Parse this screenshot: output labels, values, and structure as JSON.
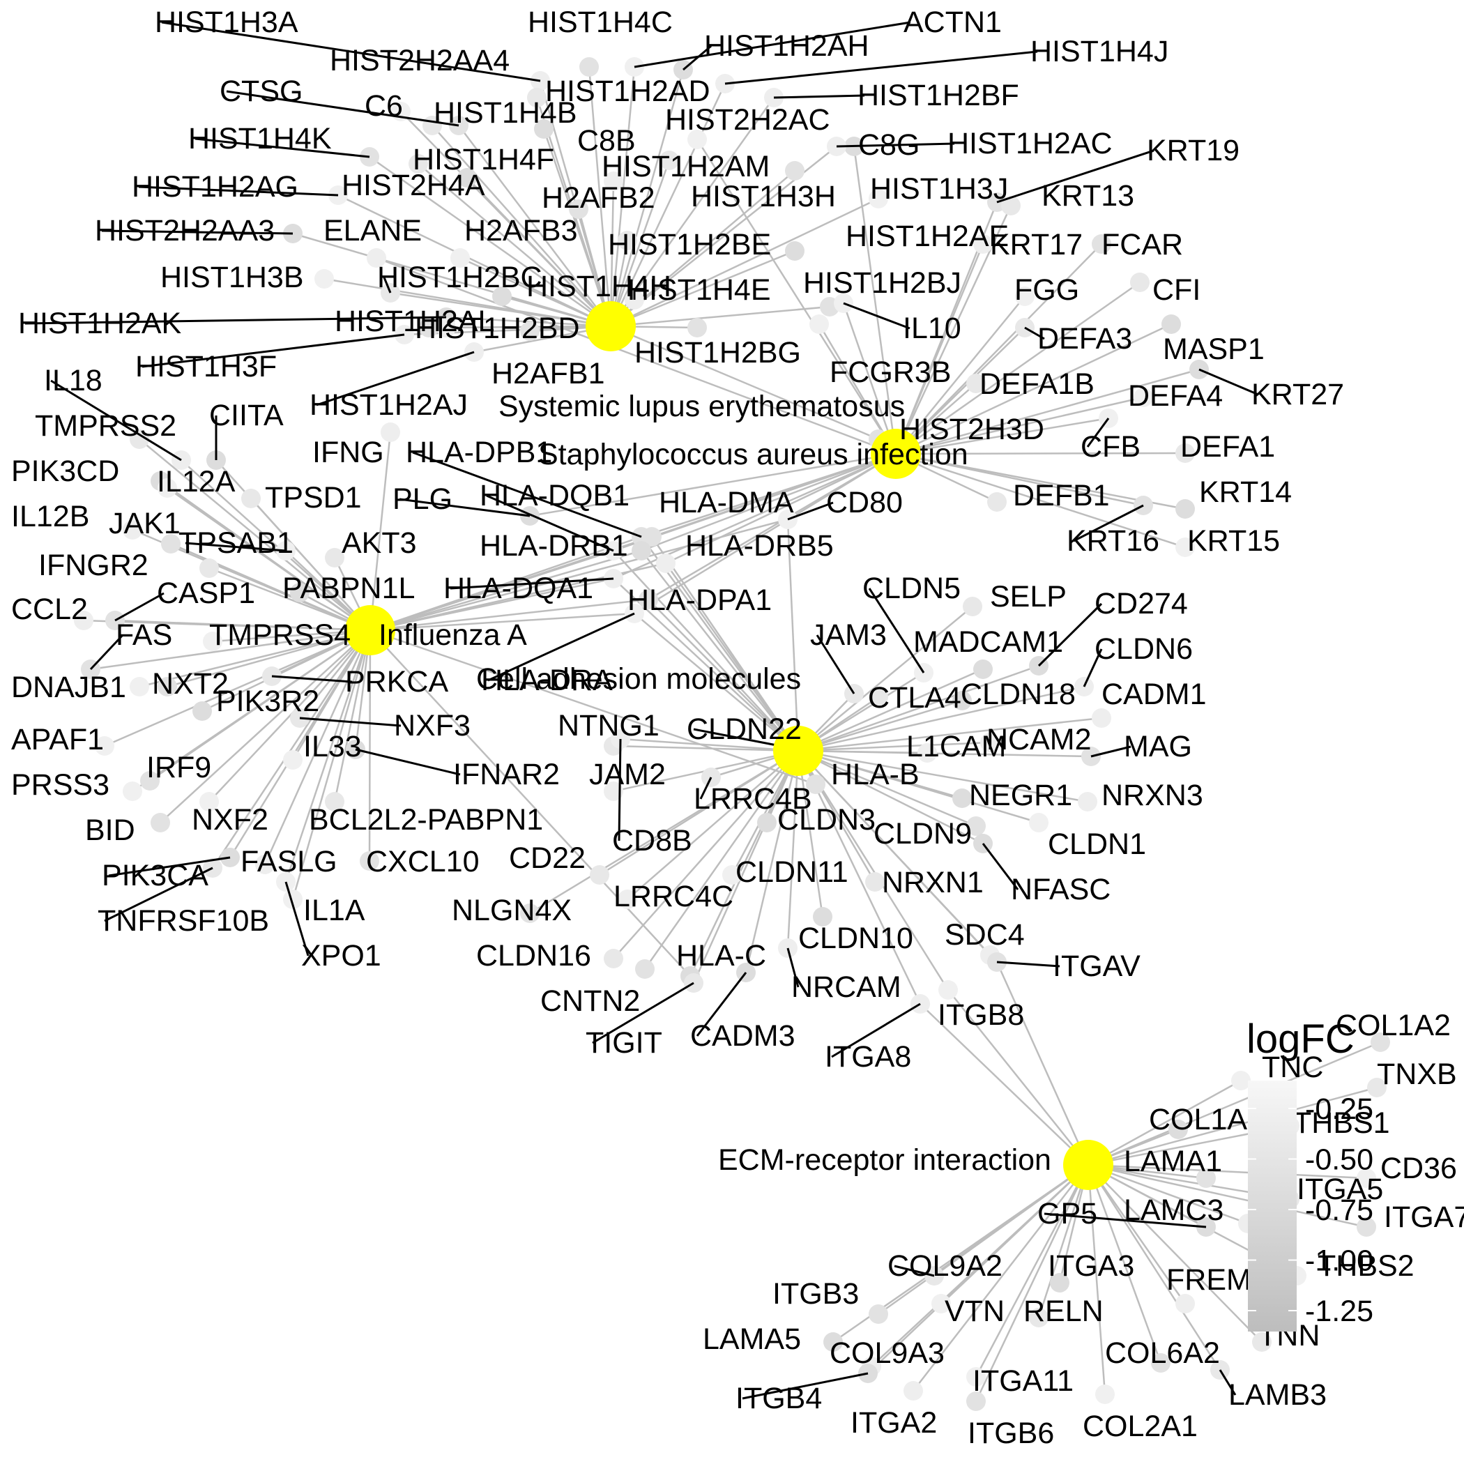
{
  "hubs": [
    {
      "id": "sle",
      "label": "Systemic lupus erythematosus"
    },
    {
      "id": "sa",
      "label": "Staphylococcus aureus infection"
    },
    {
      "id": "flu",
      "label": "Influenza A"
    },
    {
      "id": "cam",
      "label": "Cell adhesion molecules"
    },
    {
      "id": "ecm",
      "label": "ECM-receptor interaction"
    }
  ],
  "genes": [
    "HIST1H3A",
    "HIST1H4C",
    "ACTN1",
    "HIST2H2AA4",
    "HIST1H2AH",
    "HIST1H4J",
    "CTSG",
    "C6",
    "HIST1H4B",
    "HIST1H2AD",
    "HIST1H2BF",
    "HIST1H4K",
    "C8B",
    "HIST2H2AC",
    "C8G",
    "HIST1H2AC",
    "KRT19",
    "HIST1H2AG",
    "HIST2H4A",
    "HIST1H4F",
    "HIST1H2AM",
    "HIST1H3H",
    "HIST1H3J",
    "KRT13",
    "HIST2H2AA3",
    "ELANE",
    "H2AFB2",
    "H2AFB3",
    "HIST1H2BE",
    "HIST1H2AE",
    "KRT17",
    "FCAR",
    "HIST1H3B",
    "HIST1H2BC",
    "HIST1H4H",
    "HIST1H4E",
    "HIST1H2BJ",
    "FGG",
    "CFI",
    "HIST1H2AK",
    "HIST1H2AL",
    "HIST1H2BD",
    "IL10",
    "DEFA3",
    "MASP1",
    "HIST1H3F",
    "HIST1H2BG",
    "FCGR3B",
    "DEFA1B",
    "KRT27",
    "IL18",
    "H2AFB1",
    "DEFA4",
    "TMPRSS2",
    "CIITA",
    "HIST1H2AJ",
    "HIST2H3D",
    "CFB",
    "DEFA1",
    "PIK3CD",
    "IFNG",
    "HLA-DPB1",
    "IL12A",
    "TPSD1",
    "PLG",
    "HLA-DQB1",
    "HLA-DMA",
    "CD80",
    "DEFB1",
    "KRT14",
    "IL12B",
    "JAK1",
    "TPSAB1",
    "AKT3",
    "HLA-DRB1",
    "HLA-DRB5",
    "KRT16",
    "KRT15",
    "IFNGR2",
    "PABPN1L",
    "HLA-DQA1",
    "HLA-DPA1",
    "CLDN5",
    "SELP",
    "CD274",
    "CCL2",
    "CASP1",
    "TMPRSS4",
    "JAM3",
    "MADCAM1",
    "CLDN6",
    "FAS",
    "HLA-DRA",
    "CTLA4",
    "CLDN18",
    "CADM1",
    "DNAJB1",
    "NXT2",
    "PRKCA",
    "PIK3R2",
    "NCAM2",
    "MAG",
    "APAF1",
    "NXF3",
    "CLDN22",
    "L1CAM",
    "IRF9",
    "IL33",
    "NTNG1",
    "IFNAR2",
    "JAM2",
    "HLA-B",
    "PRSS3",
    "LRRC4B",
    "NEGR1",
    "NRXN3",
    "BID",
    "NXF2",
    "BCL2L2-PABPN1",
    "CLDN3",
    "CD8B",
    "CLDN9",
    "CLDN1",
    "CD22",
    "PIK3CA",
    "FASLG",
    "CXCL10",
    "CLDN11",
    "NRXN1",
    "NFASC",
    "LRRC4C",
    "NLGN4X",
    "IL1A",
    "TNFRSF10B",
    "CLDN10",
    "SDC4",
    "ITGAV",
    "XPO1",
    "CLDN16",
    "HLA-C",
    "NRCAM",
    "CNTN2",
    "ITGB8",
    "TIGIT",
    "CADM3",
    "ITGA8",
    "COL1A2",
    "TNC",
    "TNXB",
    "COL1A1",
    "THBS1",
    "LAMA1",
    "CD36",
    "ITGA5",
    "GP5",
    "LAMC3",
    "ITGA7",
    "THBS2",
    "COL9A2",
    "ITGA3",
    "FREM2",
    "ITGB3",
    "VTN",
    "RELN",
    "LAMA5",
    "COL9A3",
    "COL6A2",
    "ITGA11",
    "LAMB3",
    "ITGB4",
    "ITGA2",
    "ITGB6",
    "COL2A1",
    "TNN"
  ],
  "legend": {
    "title": "logFC",
    "ticks": [
      "-0.25",
      "-0.50",
      "-0.75",
      "-1.00",
      "-1.25"
    ],
    "color_top": "#f7f7f7",
    "color_bottom": "#bdbdbd"
  },
  "colors": {
    "hub": "#ffff00",
    "edge": "#bdbdbd",
    "node": "#e6e6e6",
    "leader": "#000000"
  }
}
